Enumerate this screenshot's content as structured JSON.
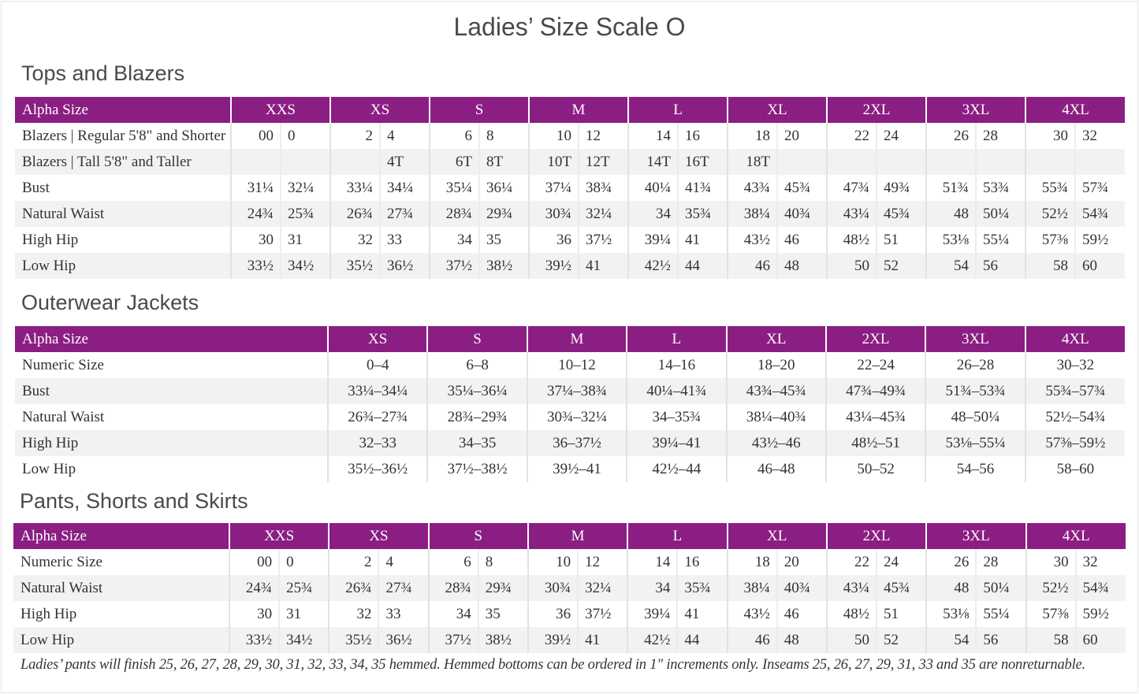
{
  "title": "Ladies’ Size Scale O",
  "colors": {
    "header_bg": "#8b1e83",
    "header_text": "#ffffff",
    "alt_row": "#f2f2f1"
  },
  "tops": {
    "heading": "Tops and Blazers",
    "header": [
      "Alpha Size",
      "XXS",
      "XS",
      "S",
      "M",
      "L",
      "XL",
      "2XL",
      "3XL",
      "4XL"
    ],
    "rows": [
      {
        "label": "Blazers | Regular 5'8\" and Shorter",
        "values": [
          "00",
          "0",
          "2",
          "4",
          "6",
          "8",
          "10",
          "12",
          "14",
          "16",
          "18",
          "20",
          "22",
          "24",
          "26",
          "28",
          "30",
          "32"
        ]
      },
      {
        "label": "Blazers | Tall 5'8\" and Taller",
        "values": [
          "",
          "",
          "",
          "4T",
          "6T",
          "8T",
          "10T",
          "12T",
          "14T",
          "16T",
          "18T",
          "",
          "",
          "",
          "",
          "",
          "",
          ""
        ]
      },
      {
        "label": "Bust",
        "values": [
          "31¼",
          "32¼",
          "33¼",
          "34¼",
          "35¼",
          "36¼",
          "37¼",
          "38¾",
          "40¼",
          "41¾",
          "43¾",
          "45¾",
          "47¾",
          "49¾",
          "51¾",
          "53¾",
          "55¾",
          "57¾"
        ]
      },
      {
        "label": "Natural Waist",
        "values": [
          "24¾",
          "25¾",
          "26¾",
          "27¾",
          "28¾",
          "29¾",
          "30¾",
          "32¼",
          "34",
          "35¾",
          "38¼",
          "40¾",
          "43¼",
          "45¾",
          "48",
          "50¼",
          "52½",
          "54¾"
        ]
      },
      {
        "label": "High Hip",
        "values": [
          "30",
          "31",
          "32",
          "33",
          "34",
          "35",
          "36",
          "37½",
          "39¼",
          "41",
          "43½",
          "46",
          "48½",
          "51",
          "53⅛",
          "55¼",
          "57⅜",
          "59½"
        ]
      },
      {
        "label": "Low Hip",
        "values": [
          "33½",
          "34½",
          "35½",
          "36½",
          "37½",
          "38½",
          "39½",
          "41",
          "42½",
          "44",
          "46",
          "48",
          "50",
          "52",
          "54",
          "56",
          "58",
          "60"
        ]
      }
    ]
  },
  "outerwear": {
    "heading": "Outerwear Jackets",
    "header": [
      "Alpha Size",
      "XS",
      "S",
      "M",
      "L",
      "XL",
      "2XL",
      "3XL",
      "4XL"
    ],
    "rows": [
      {
        "label": "Numeric Size",
        "values": [
          "0–4",
          "6–8",
          "10–12",
          "14–16",
          "18–20",
          "22–24",
          "26–28",
          "30–32"
        ]
      },
      {
        "label": "Bust",
        "values": [
          "33¼–34¼",
          "35¼–36¼",
          "37¼–38¾",
          "40¼–41¾",
          "43¾–45¾",
          "47¾–49¾",
          "51¾–53¾",
          "55¾–57¾"
        ]
      },
      {
        "label": "Natural Waist",
        "values": [
          "26¾–27¾",
          "28¾–29¾",
          "30¾–32¼",
          "34–35¾",
          "38¼–40¾",
          "43¼–45¾",
          "48–50¼",
          "52½–54¾"
        ]
      },
      {
        "label": "High Hip",
        "values": [
          "32–33",
          "34–35",
          "36–37½",
          "39¼–41",
          "43½–46",
          "48½–51",
          "53⅛–55¼",
          "57⅜–59½"
        ]
      },
      {
        "label": "Low Hip",
        "values": [
          "35½–36½",
          "37½–38½",
          "39½–41",
          "42½–44",
          "46–48",
          "50–52",
          "54–56",
          "58–60"
        ]
      }
    ]
  },
  "pants": {
    "heading": "Pants, Shorts and Skirts",
    "header": [
      "Alpha Size",
      "XXS",
      "XS",
      "S",
      "M",
      "L",
      "XL",
      "2XL",
      "3XL",
      "4XL"
    ],
    "rows": [
      {
        "label": "Numeric Size",
        "values": [
          "00",
          "0",
          "2",
          "4",
          "6",
          "8",
          "10",
          "12",
          "14",
          "16",
          "18",
          "20",
          "22",
          "24",
          "26",
          "28",
          "30",
          "32"
        ]
      },
      {
        "label": "Natural Waist",
        "values": [
          "24¾",
          "25¾",
          "26¾",
          "27¾",
          "28¾",
          "29¾",
          "30¾",
          "32¼",
          "34",
          "35¾",
          "38¼",
          "40¾",
          "43¼",
          "45¾",
          "48",
          "50¼",
          "52½",
          "54¾"
        ]
      },
      {
        "label": "High Hip",
        "values": [
          "30",
          "31",
          "32",
          "33",
          "34",
          "35",
          "36",
          "37½",
          "39¼",
          "41",
          "43½",
          "46",
          "48½",
          "51",
          "53⅛",
          "55¼",
          "57⅜",
          "59½"
        ]
      },
      {
        "label": "Low Hip",
        "values": [
          "33½",
          "34½",
          "35½",
          "36½",
          "37½",
          "38½",
          "39½",
          "41",
          "42½",
          "44",
          "46",
          "48",
          "50",
          "52",
          "54",
          "56",
          "58",
          "60"
        ]
      }
    ]
  },
  "footnote": "Ladies’ pants will finish 25, 26, 27, 28, 29, 30, 31, 32, 33, 34, 35 hemmed. Hemmed bottoms can be ordered in 1\" increments only. Inseams 25, 26, 27, 29, 31, 33 and 35 are nonreturnable."
}
